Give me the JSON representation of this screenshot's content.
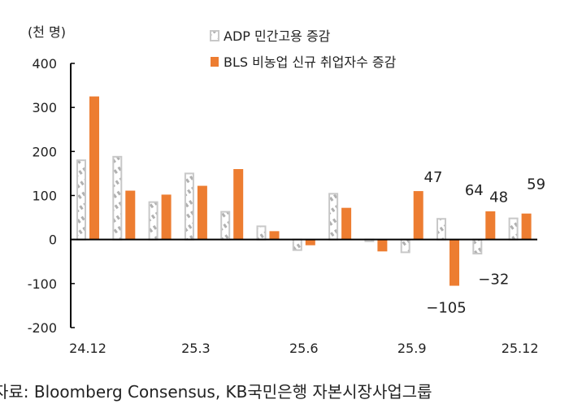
{
  "chart_data": {
    "type": "bar",
    "unit_label": "(천 명)",
    "categories": [
      "24.12",
      "25.1",
      "25.2",
      "25.3",
      "25.4",
      "25.5",
      "25.6",
      "25.7",
      "25.8",
      "25.9",
      "25.10",
      "25.11",
      "25.12"
    ],
    "tick_labels": [
      "24.12",
      "25.3",
      "25.6",
      "25.9",
      "25.12"
    ],
    "series": [
      {
        "name": "ADP 민간고용 증감",
        "color": "#bfbfbf",
        "pattern": "hatched-outline",
        "values": [
          180,
          188,
          85,
          150,
          63,
          30,
          -24,
          104,
          -4,
          -29,
          47,
          -32,
          48
        ]
      },
      {
        "name": "BLS 비농업 신규 취업자수 증감",
        "color": "#ed7d31",
        "values": [
          325,
          111,
          102,
          122,
          160,
          19,
          -13,
          72,
          -27,
          110,
          -105,
          64,
          59
        ]
      }
    ],
    "data_labels": [
      {
        "series": 0,
        "category": "25.10",
        "text": "47"
      },
      {
        "series": 1,
        "category": "25.10",
        "text": "-105"
      },
      {
        "series": 0,
        "category": "25.11",
        "text": "-32"
      },
      {
        "series": 1,
        "category": "25.11",
        "text": "64"
      },
      {
        "series": 0,
        "category": "25.12",
        "text": "48"
      },
      {
        "series": 1,
        "category": "25.12",
        "text": "59"
      }
    ],
    "yticks": [
      400,
      300,
      200,
      100,
      0,
      -100,
      -200
    ],
    "ylim": [
      -200,
      400
    ],
    "grid": false,
    "legend_placement": "top-center"
  },
  "source": "자료: Bloomberg Consensus, KB국민은행 자본시장사업그룹"
}
